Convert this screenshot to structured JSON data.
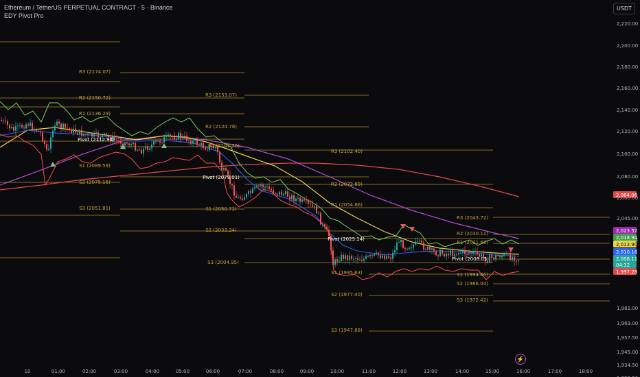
{
  "header": {
    "title": "Ethereum / TetherUS PERPETUAL CONTRACT · 5 · Binance",
    "indicator": "EDY Pivot Pro"
  },
  "currency_button": "USDT",
  "price_axis": {
    "ticks": [
      "2,220.00",
      "2,200.00",
      "2,180.00",
      "2,160.00",
      "2,140.00",
      "2,120.00",
      "2,100.00",
      "2,080.00",
      "2,060.00",
      "2,045.00",
      "2,018.94",
      "1,982.00",
      "1,969.00",
      "1,957.50",
      "1,945.00",
      "1,934.50",
      "1,923.50"
    ],
    "badges": [
      {
        "label": "2,064.08",
        "color": "#e04a4a",
        "text_color": "#ffffff"
      },
      {
        "label": "2,023.52",
        "color": "#9c27b0",
        "text_color": "#ffffff"
      },
      {
        "label": "2,018.94",
        "color": "#43a047",
        "text_color": "#ffffff"
      },
      {
        "label": "2,013.90",
        "color": "#e8d44d",
        "text_color": "#111111"
      },
      {
        "label": "2,010.16",
        "color": "#2962ff",
        "text_color": "#ffffff"
      },
      {
        "label": "2,008.11",
        "color": "#26a69a",
        "text_color": "#ffffff"
      },
      {
        "label": "04:12",
        "color": "#26a69a",
        "text_color": "#ffffff"
      },
      {
        "label": "1,997.28",
        "color": "#e04a4a",
        "text_color": "#ffffff"
      }
    ]
  },
  "time_axis": [
    "10",
    "01:00",
    "02:00",
    "03:00",
    "04:00",
    "05:00",
    "06:00",
    "07:00",
    "08:00",
    "09:00",
    "10:00",
    "11:00",
    "12:00",
    "13:00",
    "14:00",
    "15:00",
    "16:00",
    "17:00",
    "18:00"
  ],
  "pivot_sessions": [
    {
      "labels": [
        {
          "text": "R3 (2174.07)",
          "type": "r"
        },
        {
          "text": "R2 (2150.72)",
          "type": "r"
        },
        {
          "text": "R1 (2136.29)",
          "type": "r"
        },
        {
          "text": "Pivot (2112.94)",
          "type": "p"
        },
        {
          "text": "S1 (2089.59)",
          "type": "s"
        },
        {
          "text": "S2 (2075.16)",
          "type": "s"
        },
        {
          "text": "S3 (2051.81)",
          "type": "s"
        }
      ]
    },
    {
      "labels": [
        {
          "text": "R3 (2153.07)",
          "type": "r"
        },
        {
          "text": "R2 (2124.78)",
          "type": "r"
        },
        {
          "text": "R1 (2107.30)",
          "type": "r"
        },
        {
          "text": "Pivot (2079.01)",
          "type": "p"
        },
        {
          "text": "S1 (2050.72)",
          "type": "s"
        },
        {
          "text": "S2 (2033.24)",
          "type": "s"
        },
        {
          "text": "S3 (2004.95)",
          "type": "s"
        }
      ]
    },
    {
      "labels": [
        {
          "text": "R3 (2102.40)",
          "type": "r"
        },
        {
          "text": "R2 (2072.89)",
          "type": "r"
        },
        {
          "text": "R1 (2054.66)",
          "type": "r"
        },
        {
          "text": "Pivot (2025.14)",
          "type": "p"
        },
        {
          "text": "S1 (1995.63)",
          "type": "s"
        },
        {
          "text": "S2 (1977.40)",
          "type": "s"
        },
        {
          "text": "S3 (1947.88)",
          "type": "s"
        }
      ]
    },
    {
      "labels": [
        {
          "text": "R3 (2043.72)",
          "type": "r"
        },
        {
          "text": "R2 (2030.11)",
          "type": "r"
        },
        {
          "text": "R1 (2021.66)",
          "type": "r"
        },
        {
          "text": "Pivot (2008.05)",
          "type": "p"
        },
        {
          "text": "S1 (1994.46)",
          "type": "s"
        },
        {
          "text": "S2 (1986.04)",
          "type": "s"
        },
        {
          "text": "S3 (1972.42)",
          "type": "s"
        }
      ]
    }
  ],
  "colors": {
    "background": "#0b0b0e",
    "pivot_line": "#c8a23a",
    "up": "#26a69a",
    "down": "#ef5350",
    "ema_yellow": "#f0d050",
    "ema_blue": "#2962ff",
    "ema_purple": "#b04fd0",
    "ema_red": "#e04a4a",
    "band_green": "#7cd05a",
    "band_red": "#ff4a4a"
  }
}
